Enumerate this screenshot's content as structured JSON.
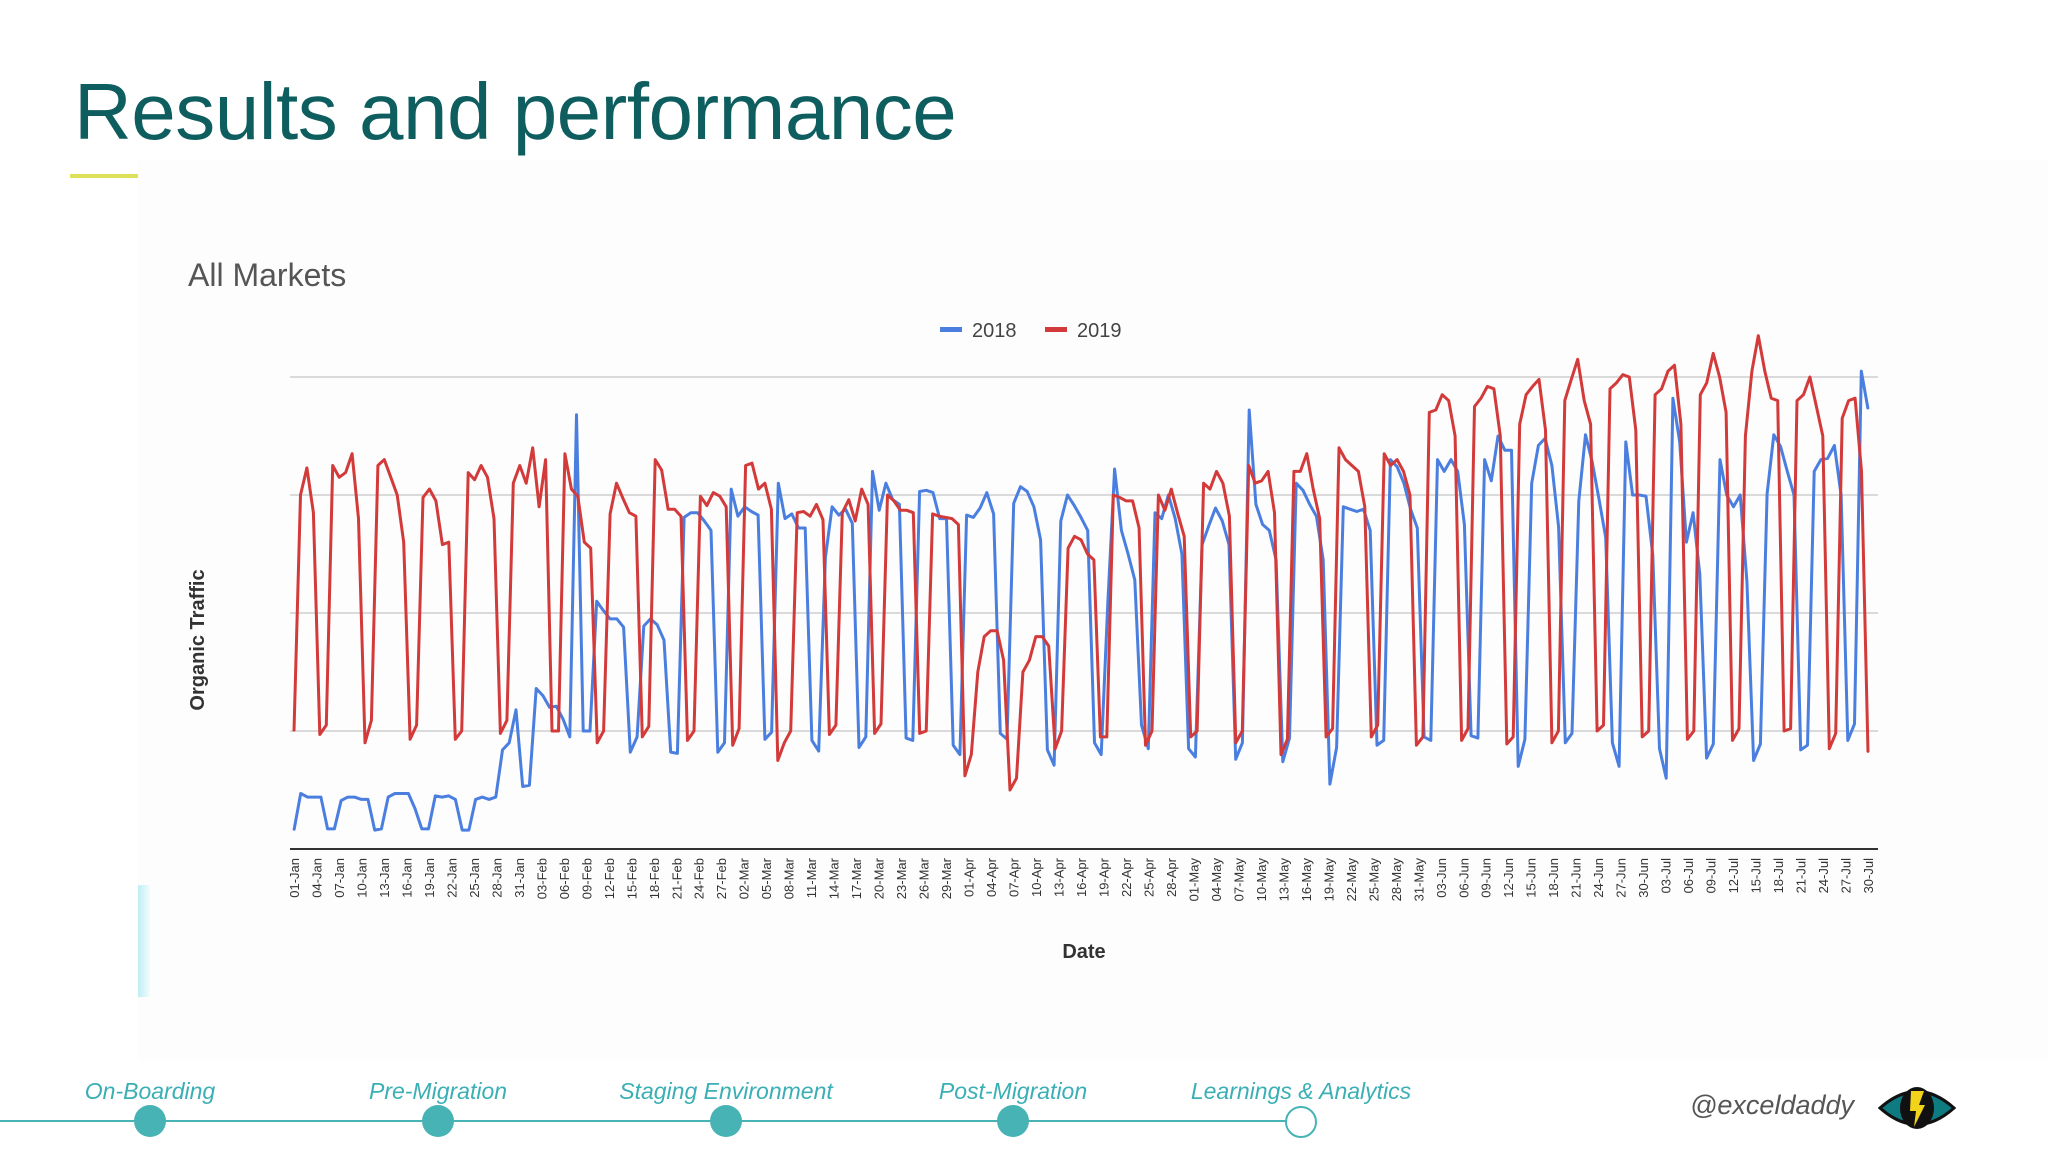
{
  "slide": {
    "title": "Results and performance",
    "handle": "@exceldaddy"
  },
  "timeline": [
    {
      "label": "On-Boarding",
      "state": "done"
    },
    {
      "label": "Pre-Migration",
      "state": "done"
    },
    {
      "label": "Staging Environment",
      "state": "done"
    },
    {
      "label": "Post-Migration",
      "state": "done"
    },
    {
      "label": "Learnings & Analytics",
      "state": "current"
    }
  ],
  "colors": {
    "title": "#0f5e5f",
    "accent_underline": "#dde25a",
    "timeline": "#47b3b5",
    "series_2018": "#4a7fe0",
    "series_2019": "#d33a3a"
  },
  "chart_data": {
    "type": "line",
    "title": "All Markets",
    "xlabel": "Date",
    "ylabel": "Organic Traffic",
    "legend_position": "top-center",
    "grid": true,
    "y_ticks_labeled": false,
    "ylim": [
      0,
      4
    ],
    "x_tick_labels": [
      "01-Jan",
      "04-Jan",
      "07-Jan",
      "10-Jan",
      "13-Jan",
      "16-Jan",
      "19-Jan",
      "22-Jan",
      "25-Jan",
      "28-Jan",
      "31-Jan",
      "03-Feb",
      "06-Feb",
      "09-Feb",
      "12-Feb",
      "15-Feb",
      "18-Feb",
      "21-Feb",
      "24-Feb",
      "27-Feb",
      "02-Mar",
      "05-Mar",
      "08-Mar",
      "11-Mar",
      "14-Mar",
      "17-Mar",
      "20-Mar",
      "23-Mar",
      "26-Mar",
      "29-Mar",
      "01-Apr",
      "04-Apr",
      "07-Apr",
      "10-Apr",
      "13-Apr",
      "16-Apr",
      "19-Apr",
      "22-Apr",
      "25-Apr",
      "28-Apr",
      "01-May",
      "04-May",
      "07-May",
      "10-May",
      "13-May",
      "16-May",
      "19-May",
      "22-May",
      "25-May",
      "28-May",
      "31-May",
      "03-Jun",
      "06-Jun",
      "09-Jun",
      "12-Jun",
      "15-Jun",
      "18-Jun",
      "21-Jun",
      "24-Jun",
      "27-Jun",
      "30-Jun",
      "03-Jul",
      "06-Jul",
      "09-Jul",
      "12-Jul",
      "15-Jul",
      "18-Jul",
      "21-Jul",
      "24-Jul",
      "27-Jul",
      "30-Jul"
    ],
    "series": [
      {
        "name": "2018",
        "color": "#4a7fe0",
        "values": [
          0.16,
          0.47,
          0.44,
          0.44,
          0.44,
          0.17,
          0.17,
          0.41,
          0.44,
          0.44,
          0.42,
          0.42,
          0.16,
          0.17,
          0.44,
          0.47,
          0.47,
          0.47,
          0.34,
          0.17,
          0.17,
          0.45,
          0.44,
          0.45,
          0.42,
          0.16,
          0.16,
          0.42,
          0.44,
          0.42,
          0.44,
          0.84,
          0.9,
          1.18,
          0.53,
          0.54,
          1.36,
          1.3,
          1.2,
          1.21,
          1.1,
          0.95,
          3.68,
          1.0,
          1.0,
          2.1,
          2.02,
          1.95,
          1.95,
          1.88,
          0.82,
          0.95,
          1.89,
          1.95,
          1.9,
          1.77,
          0.82,
          0.81,
          2.81,
          2.85,
          2.85,
          2.78,
          2.7,
          0.82,
          0.9,
          3.05,
          2.82,
          2.9,
          2.86,
          2.83,
          0.93,
          0.99,
          3.1,
          2.8,
          2.84,
          2.72,
          2.72,
          0.92,
          0.83,
          2.47,
          2.9,
          2.83,
          2.88,
          2.76,
          0.86,
          0.95,
          3.2,
          2.87,
          3.1,
          2.96,
          2.92,
          0.94,
          0.92,
          3.03,
          3.04,
          3.02,
          2.8,
          2.8,
          0.88,
          0.8,
          2.83,
          2.81,
          2.89,
          3.02,
          2.84,
          0.98,
          0.93,
          2.93,
          3.07,
          3.03,
          2.9,
          2.62,
          0.84,
          0.71,
          2.78,
          3.0,
          2.91,
          2.81,
          2.7,
          0.9,
          0.8,
          2.1,
          3.22,
          2.7,
          2.5,
          2.28,
          1.05,
          0.85,
          2.85,
          2.8,
          3.0,
          2.8,
          2.5,
          0.85,
          0.78,
          2.58,
          2.74,
          2.89,
          2.78,
          2.58,
          0.76,
          0.9,
          3.72,
          2.92,
          2.75,
          2.7,
          2.45,
          0.74,
          0.94,
          3.1,
          3.04,
          2.92,
          2.82,
          2.45,
          0.55,
          0.86,
          2.9,
          2.88,
          2.86,
          2.88,
          2.7,
          0.88,
          0.92,
          3.3,
          3.24,
          3.1,
          2.88,
          2.72,
          0.95,
          0.92,
          3.3,
          3.2,
          3.3,
          3.2,
          2.75,
          0.96,
          0.94,
          3.3,
          3.12,
          3.5,
          3.38,
          3.38,
          0.7,
          0.93,
          3.1,
          3.42,
          3.48,
          3.25,
          2.73,
          0.9,
          0.98,
          2.95,
          3.51,
          3.28,
          2.97,
          2.64,
          0.9,
          0.7,
          3.45,
          3.0,
          3.0,
          2.99,
          2.49,
          0.85,
          0.6,
          3.82,
          3.45,
          2.6,
          2.85,
          2.33,
          0.77,
          0.89,
          3.3,
          3.0,
          2.9,
          3.0,
          2.27,
          0.75,
          0.89,
          3.01,
          3.51,
          3.41,
          3.2,
          3.0,
          0.84,
          0.88,
          3.2,
          3.3,
          3.31,
          3.42,
          3.0,
          0.92,
          1.06,
          4.05,
          3.73
        ]
      },
      {
        "name": "2019",
        "color": "#d33a3a",
        "values": [
          1.0,
          3.0,
          3.23,
          2.85,
          0.97,
          1.05,
          3.25,
          3.15,
          3.19,
          3.35,
          2.8,
          0.9,
          1.09,
          3.25,
          3.3,
          3.15,
          3.0,
          2.6,
          0.93,
          1.05,
          2.98,
          3.05,
          2.95,
          2.58,
          2.6,
          0.93,
          1.0,
          3.19,
          3.13,
          3.25,
          3.15,
          2.8,
          0.98,
          1.09,
          3.1,
          3.25,
          3.1,
          3.4,
          2.9,
          3.3,
          1.0,
          1.0,
          3.35,
          3.05,
          2.99,
          2.6,
          2.55,
          0.9,
          1.0,
          2.84,
          3.1,
          2.97,
          2.85,
          2.82,
          0.95,
          1.04,
          3.3,
          3.21,
          2.88,
          2.88,
          2.82,
          0.92,
          1.0,
          2.99,
          2.91,
          3.02,
          2.99,
          2.9,
          0.88,
          1.02,
          3.25,
          3.27,
          3.05,
          3.1,
          2.88,
          0.75,
          0.9,
          1.0,
          2.85,
          2.86,
          2.82,
          2.92,
          2.79,
          0.97,
          1.05,
          2.85,
          2.96,
          2.78,
          3.05,
          2.92,
          0.98,
          1.06,
          3.0,
          2.95,
          2.87,
          2.87,
          2.85,
          0.98,
          1.0,
          2.84,
          2.82,
          2.81,
          2.8,
          2.75,
          0.62,
          0.8,
          1.5,
          1.8,
          1.85,
          1.85,
          1.6,
          0.5,
          0.6,
          1.5,
          1.6,
          1.8,
          1.8,
          1.72,
          0.85,
          1.0,
          2.55,
          2.65,
          2.62,
          2.5,
          2.45,
          0.95,
          0.95,
          3.0,
          2.98,
          2.95,
          2.95,
          2.72,
          0.88,
          1.0,
          3.0,
          2.87,
          3.05,
          2.84,
          2.65,
          0.95,
          1.0,
          3.1,
          3.05,
          3.2,
          3.1,
          2.82,
          0.9,
          1.0,
          3.25,
          3.1,
          3.12,
          3.2,
          2.85,
          0.8,
          0.93,
          3.2,
          3.2,
          3.35,
          3.05,
          2.8,
          0.95,
          1.02,
          3.4,
          3.3,
          3.25,
          3.2,
          2.9,
          0.95,
          1.05,
          3.35,
          3.25,
          3.3,
          3.2,
          3.0,
          0.88,
          0.95,
          3.7,
          3.72,
          3.85,
          3.8,
          3.5,
          0.92,
          1.02,
          3.75,
          3.82,
          3.92,
          3.9,
          3.5,
          0.89,
          0.95,
          3.6,
          3.85,
          3.92,
          3.98,
          3.55,
          0.9,
          1.0,
          3.8,
          3.98,
          4.15,
          3.8,
          3.6,
          1.0,
          1.05,
          3.9,
          3.95,
          4.02,
          4.0,
          3.55,
          0.95,
          1.0,
          3.85,
          3.9,
          4.05,
          4.1,
          3.6,
          0.93,
          1.0,
          3.85,
          3.95,
          4.2,
          4.0,
          3.7,
          0.92,
          1.02,
          3.5,
          4.05,
          4.35,
          4.05,
          3.82,
          3.8,
          1.0,
          1.02,
          3.8,
          3.85,
          4.0,
          3.75,
          3.5,
          0.85,
          0.98,
          3.65,
          3.8,
          3.82,
          3.2,
          0.82
        ]
      }
    ]
  }
}
